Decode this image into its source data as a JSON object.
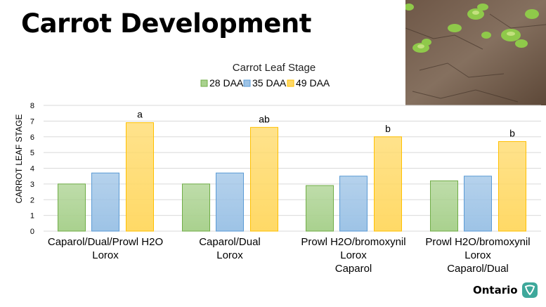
{
  "slide_title": "Carrot Development",
  "logo_text": "Ontario",
  "colors": {
    "green": "#a9d18e",
    "blue": "#9dc3e6",
    "yellow": "#ffd966",
    "green_edge": "#70ad47",
    "blue_edge": "#5b9bd5",
    "yellow_edge": "#ffc000"
  },
  "chart_data": {
    "type": "bar",
    "title": "Carrot Leaf Stage",
    "ylabel": "CARROT LEAF STAGE",
    "xlabel": "",
    "ylim": [
      0,
      8
    ],
    "yticks": [
      "0",
      "1",
      "2",
      "3",
      "4",
      "5",
      "6",
      "7",
      "8"
    ],
    "grid": true,
    "legend_position": "top",
    "categories": [
      [
        "Caparol/Dual/Prowl H2O",
        "Lorox"
      ],
      [
        "Caparol/Dual",
        "Lorox"
      ],
      [
        "Prowl H2O/bromoxynil",
        "Lorox",
        "Caparol"
      ],
      [
        "Prowl H2O/bromoxynil",
        "Lorox",
        "Caparol/Dual"
      ]
    ],
    "series": [
      {
        "name": "28 DAA",
        "values": [
          3.0,
          3.0,
          2.9,
          3.2
        ]
      },
      {
        "name": "35 DAA",
        "values": [
          3.7,
          3.7,
          3.5,
          3.5
        ]
      },
      {
        "name": "49 DAA",
        "values": [
          6.9,
          6.6,
          6.0,
          5.7
        ]
      }
    ],
    "annotations": [
      "a",
      "ab",
      "b",
      "b"
    ]
  }
}
